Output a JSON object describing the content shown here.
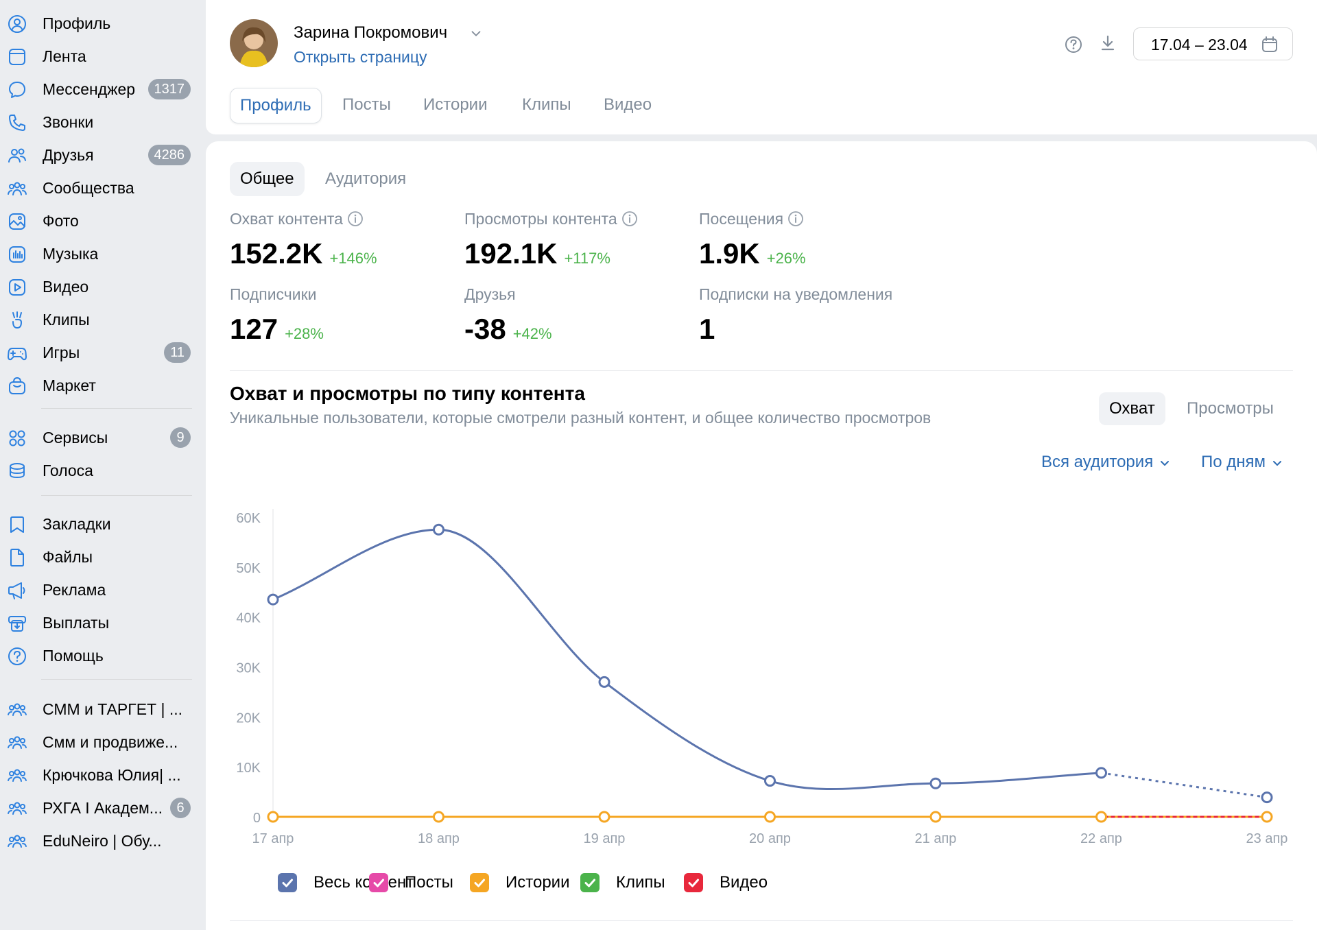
{
  "sidebar": {
    "items": [
      {
        "label": "Профиль",
        "icon": "user-circle-icon",
        "badge": ""
      },
      {
        "label": "Лента",
        "icon": "news-feed-icon",
        "badge": ""
      },
      {
        "label": "Мессенджер",
        "icon": "message-icon",
        "badge": "1317"
      },
      {
        "label": "Звонки",
        "icon": "phone-icon",
        "badge": ""
      },
      {
        "label": "Друзья",
        "icon": "friends-icon",
        "badge": "4286"
      },
      {
        "label": "Сообщества",
        "icon": "communities-icon",
        "badge": ""
      },
      {
        "label": "Фото",
        "icon": "photo-icon",
        "badge": ""
      },
      {
        "label": "Музыка",
        "icon": "music-icon",
        "badge": ""
      },
      {
        "label": "Видео",
        "icon": "video-icon",
        "badge": ""
      },
      {
        "label": "Клипы",
        "icon": "clips-icon",
        "badge": ""
      },
      {
        "label": "Игры",
        "icon": "gamepad-icon",
        "badge": "11"
      },
      {
        "label": "Маркет",
        "icon": "market-bag-icon",
        "badge": ""
      },
      {
        "label": "Сервисы",
        "icon": "services-grid-icon",
        "badge": "9"
      },
      {
        "label": "Голоса",
        "icon": "coins-icon",
        "badge": ""
      },
      {
        "label": "Закладки",
        "icon": "bookmark-icon",
        "badge": ""
      },
      {
        "label": "Файлы",
        "icon": "file-icon",
        "badge": ""
      },
      {
        "label": "Реклама",
        "icon": "megaphone-icon",
        "badge": ""
      },
      {
        "label": "Выплаты",
        "icon": "payouts-icon",
        "badge": ""
      },
      {
        "label": "Помощь",
        "icon": "help-circle-icon",
        "badge": ""
      },
      {
        "label": "СММ и ТАРГЕТ | ...",
        "icon": "group-icon",
        "badge": ""
      },
      {
        "label": "Смм и продвиже...",
        "icon": "group-icon",
        "badge": ""
      },
      {
        "label": "Крючкова Юлия| ...",
        "icon": "group-icon",
        "badge": ""
      },
      {
        "label": "РХГА I Академ...",
        "icon": "group-icon",
        "badge": "6"
      },
      {
        "label": "EduNeiro | Обу...",
        "icon": "group-icon",
        "badge": ""
      }
    ]
  },
  "header": {
    "owner_name": "Зарина Покромович",
    "open_page": "Открыть страницу",
    "date_range": "17.04 – 23.04",
    "tabs": [
      "Профиль",
      "Посты",
      "Истории",
      "Клипы",
      "Видео"
    ],
    "active_tab": "Профиль"
  },
  "main": {
    "subtabs": [
      "Общее",
      "Аудитория"
    ],
    "stats": [
      {
        "label": "Охват контента",
        "value": "152.2K",
        "delta": "+146%",
        "info": true
      },
      {
        "label": "Просмотры контента",
        "value": "192.1K",
        "delta": "+117%",
        "info": true
      },
      {
        "label": "Посещения",
        "value": "1.9K",
        "delta": "+26%",
        "info": true
      },
      {
        "label": "Подписчики",
        "value": "127",
        "delta": "+28%",
        "info": false
      },
      {
        "label": "Друзья",
        "value": "-38",
        "delta": "+42%",
        "info": false
      },
      {
        "label": "Подписки на уведомления",
        "value": "1",
        "delta": "",
        "info": false
      }
    ],
    "section_title": "Охват и просмотры по типу контента",
    "section_subtitle": "Уникальные пользователи, которые смотрели разный контент, и общее количество просмотров",
    "toggle": {
      "reach": "Охват",
      "views": "Просмотры",
      "active": "Охват"
    },
    "audience_dropdown": "Вся аудитория",
    "period_dropdown": "По дням"
  },
  "colors": {
    "accent": "#2d6cb4",
    "positive": "#4bb34b",
    "muted": "#818c99",
    "all_content": "#5b74ad",
    "posts": "#e64aa8",
    "stories": "#f5a623",
    "clips": "#4bb34b",
    "video": "#e8283c"
  },
  "chart_data": {
    "type": "line",
    "x": [
      "17 апр",
      "18 апр",
      "19 апр",
      "20 апр",
      "21 апр",
      "22 апр",
      "23 апр"
    ],
    "yticks": [
      "0",
      "10K",
      "20K",
      "30K",
      "40K",
      "50K",
      "60K"
    ],
    "ylim": [
      0,
      60000
    ],
    "series": [
      {
        "name": "Весь контент",
        "values": [
          43500,
          57500,
          27000,
          7200,
          6700,
          8800,
          3900
        ],
        "color": "#5b74ad",
        "checked": true,
        "dashed_from_index": 5
      },
      {
        "name": "Посты",
        "values": [
          0,
          0,
          0,
          0,
          0,
          0,
          0
        ],
        "color": "#e64aa8",
        "checked": true
      },
      {
        "name": "Истории",
        "values": [
          0,
          0,
          0,
          0,
          0,
          0,
          0
        ],
        "color": "#f5a623",
        "checked": true,
        "dashed_from_index": 5
      },
      {
        "name": "Клипы",
        "values": [
          0,
          0,
          0,
          0,
          0,
          0,
          0
        ],
        "color": "#4bb34b",
        "checked": true
      },
      {
        "name": "Видео",
        "values": [
          0,
          0,
          0,
          0,
          0,
          0,
          0
        ],
        "color": "#e8283c",
        "checked": true
      }
    ],
    "legend_position": "bottom",
    "grid": false
  }
}
